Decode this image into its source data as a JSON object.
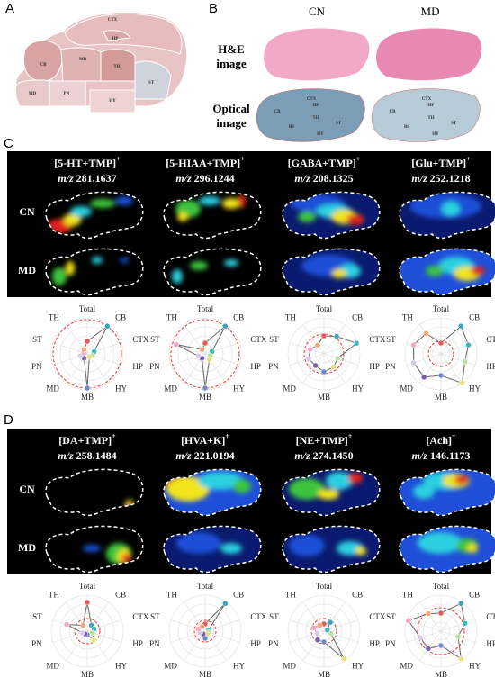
{
  "panels": {
    "A": {
      "label": "A",
      "regions": [
        "CTX",
        "HP",
        "CB",
        "MB",
        "TH",
        "MD",
        "PN",
        "HY",
        "ST"
      ]
    },
    "B": {
      "label": "B",
      "columns": [
        "CN",
        "MD"
      ],
      "rows": [
        [
          "H&E",
          "image"
        ],
        [
          "Optical",
          "image"
        ]
      ],
      "regions": [
        "CTX",
        "HP",
        "CB",
        "TH",
        "BS",
        "ST",
        "HY"
      ]
    },
    "radar_axes": [
      "Total",
      "CB",
      "CTX",
      "HP",
      "HY",
      "MB",
      "MD",
      "PN",
      "ST",
      "TH"
    ],
    "radar_colors": [
      "#e8585a",
      "#3aa6b9",
      "#3fb6c0",
      "#b8e0a0",
      "#e6e07a",
      "#6f86c8",
      "#7a5fb0",
      "#d7c9e8",
      "#f2a6c6",
      "#f0a878"
    ],
    "C": {
      "label": "C",
      "row_labels": [
        "CN",
        "MD"
      ],
      "mz_label": "m/z",
      "compounds": [
        {
          "name": "[5-HT+TMP]",
          "charge": "+",
          "mz": "281.1637",
          "values": [
            0.35,
            0.95,
            0.2,
            0.15,
            0.1,
            0.95,
            0.15,
            0.2,
            0.1,
            0.15
          ],
          "ref": 0.95
        },
        {
          "name": "[5-HIAA+TMP]",
          "charge": "+",
          "mz": "296.1244",
          "values": [
            0.3,
            0.95,
            0.2,
            0.15,
            0.2,
            0.95,
            0.15,
            0.2,
            0.85,
            0.15
          ],
          "ref": 0.95
        },
        {
          "name": "[GABA+TMP]",
          "charge": "+",
          "mz": "208.1325",
          "values": [
            0.5,
            0.6,
            0.95,
            0.4,
            0.45,
            0.5,
            0.4,
            0.45,
            0.4,
            0.3
          ],
          "ref": 0.55
        },
        {
          "name": "[Glu+TMP]",
          "charge": "+",
          "mz": "252.1218",
          "values": [
            0.3,
            0.95,
            0.8,
            0.7,
            1.0,
            0.6,
            0.8,
            0.8,
            0.8,
            0.7
          ],
          "ref": 0.35
        }
      ]
    },
    "D": {
      "label": "D",
      "row_labels": [
        "CN",
        "MD"
      ],
      "mz_label": "m/z",
      "compounds": [
        {
          "name": "[DA+TMP]",
          "charge": "+",
          "mz": "258.1484",
          "values": [
            0.8,
            0.2,
            0.2,
            0.15,
            0.3,
            0.1,
            0.1,
            0.15,
            0.6,
            0.2
          ],
          "ref": 0.35
        },
        {
          "name": "[HVA+K]",
          "charge": "+",
          "mz": "221.0194",
          "values": [
            0.2,
            0.95,
            0.1,
            0.1,
            0.1,
            0.2,
            0.1,
            0.15,
            0.2,
            0.15
          ],
          "ref": 0.3
        },
        {
          "name": "[NE+TMP]",
          "charge": "+",
          "mz": "274.1450",
          "values": [
            0.2,
            0.3,
            0.1,
            0.2,
            0.95,
            0.3,
            0.3,
            0.2,
            0.3,
            0.2
          ],
          "ref": 0.35
        },
        {
          "name": "[Ach]",
          "charge": "+",
          "mz": "146.1173",
          "values": [
            0.5,
            0.95,
            0.7,
            0.5,
            0.95,
            0.4,
            0.6,
            0.6,
            0.95,
            0.6
          ],
          "ref": 0.65
        }
      ]
    }
  }
}
